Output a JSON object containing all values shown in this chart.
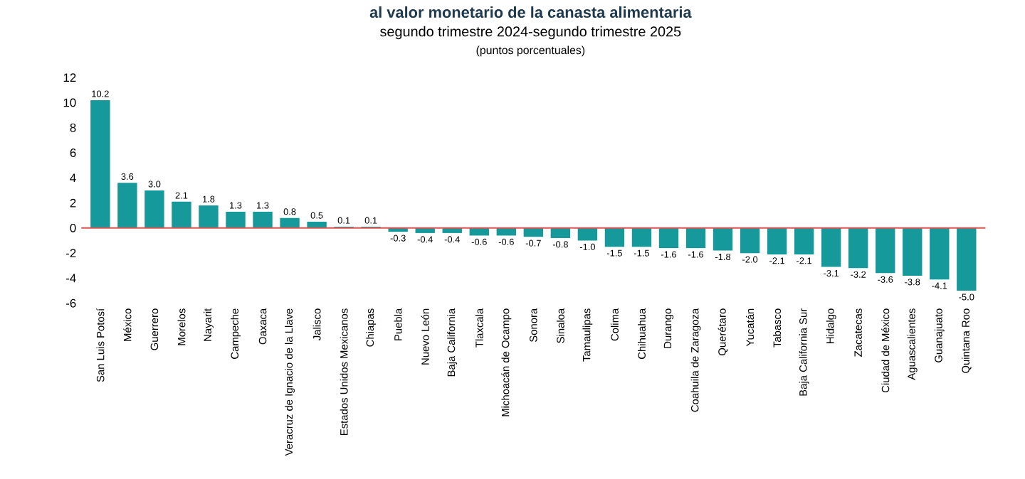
{
  "chart_data": {
    "type": "bar",
    "title": "al valor monetario de la canasta alimentaria",
    "subtitle": "segundo trimestre 2024-segundo trimestre 2025",
    "annotations": [
      "(puntos porcentuales)"
    ],
    "categories": [
      "San Luis Potosí",
      "México",
      "Guerrero",
      "Morelos",
      "Nayarit",
      "Campeche",
      "Oaxaca",
      "Veracruz de Ignacio de la Llave",
      "Jalisco",
      "Estados Unidos Mexicanos",
      "Chiapas",
      "Puebla",
      "Nuevo León",
      "Baja California",
      "Tlaxcala",
      "Michoacán de Ocampo",
      "Sonora",
      "Sinaloa",
      "Tamaulipas",
      "Colima",
      "Chihuahua",
      "Durango",
      "Coahuila de Zaragoza",
      "Querétaro",
      "Yucatán",
      "Tabasco",
      "Baja California Sur",
      "Hidalgo",
      "Zacatecas",
      "Ciudad de México",
      "Aguascalientes",
      "Guanajuato",
      "Quintana Roo"
    ],
    "values": [
      10.2,
      3.6,
      3.0,
      2.1,
      1.8,
      1.3,
      1.3,
      0.8,
      0.5,
      0.1,
      0.1,
      -0.3,
      -0.4,
      -0.4,
      -0.6,
      -0.6,
      -0.7,
      -0.8,
      -1.0,
      -1.5,
      -1.5,
      -1.6,
      -1.6,
      -1.8,
      -2.0,
      -2.1,
      -2.1,
      -3.1,
      -3.2,
      -3.6,
      -3.8,
      -4.1,
      -5.0
    ],
    "value_labels": [
      "10.2",
      "3.6",
      "3.0",
      "2.1",
      "1.8",
      "1.3",
      "1.3",
      "0.8",
      "0.5",
      "0.1",
      "0.1",
      "-0.3",
      "-0.4",
      "-0.4",
      "-0.6",
      "-0.6",
      "-0.7",
      "-0.8",
      "-1.0",
      "-1.5",
      "-1.5",
      "-1.6",
      "-1.6",
      "-1.8",
      "-2.0",
      "-2.1",
      "-2.1",
      "-3.1",
      "-3.2",
      "-3.6",
      "-3.8",
      "-4.1",
      "-5.0"
    ],
    "color": "#15999a",
    "ylim": [
      -6,
      12
    ],
    "yticks": [
      -6,
      -4,
      -2,
      0,
      2,
      4,
      6,
      8,
      10,
      12
    ],
    "grid": false,
    "ref_lines": [
      {
        "axis": "y",
        "value": 0,
        "color": "#d9534f"
      }
    ]
  }
}
